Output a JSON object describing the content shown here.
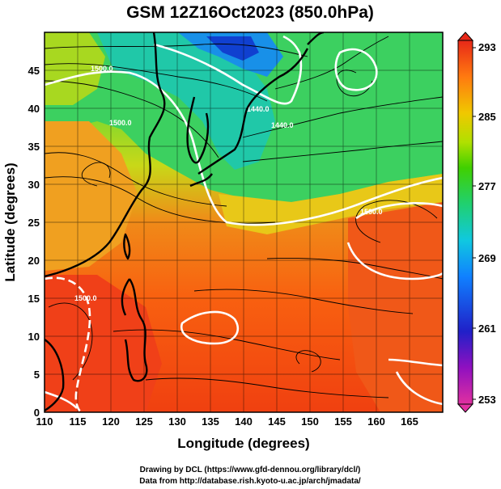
{
  "title": "GSM 12Z16Oct2023 (850.0hPa)",
  "xlabel": "Longitude (degrees)",
  "ylabel": "Latitude  (degrees)",
  "credit_line1": "Drawing by DCL (https://www.gfd-dennou.org/library/dcl/)",
  "credit_line2": "Data from http://database.rish.kyoto-u.ac.jp/arch/jmadata/",
  "chart_data": {
    "type": "heatmap",
    "title": "GSM 12Z16Oct2023 (850.0hPa)",
    "xlabel": "Longitude (degrees)",
    "ylabel": "Latitude  (degrees)",
    "xlim": [
      110,
      170
    ],
    "ylim": [
      0,
      50
    ],
    "x_ticks": [
      "110",
      "115",
      "120",
      "125",
      "130",
      "135",
      "140",
      "145",
      "150",
      "155",
      "160",
      "165"
    ],
    "y_ticks": [
      "0",
      "5",
      "10",
      "15",
      "20",
      "25",
      "30",
      "35",
      "40",
      "45"
    ],
    "colorbar": {
      "min": 253,
      "max": 293,
      "ticks": [
        "293",
        "285",
        "277",
        "269",
        "261",
        "253"
      ]
    },
    "grid": true,
    "contour_labels": [
      "1500.0",
      "1440.0",
      "1500.0",
      "1500.0",
      "1500.0",
      "1440.0"
    ],
    "overlay": "streamlines"
  }
}
